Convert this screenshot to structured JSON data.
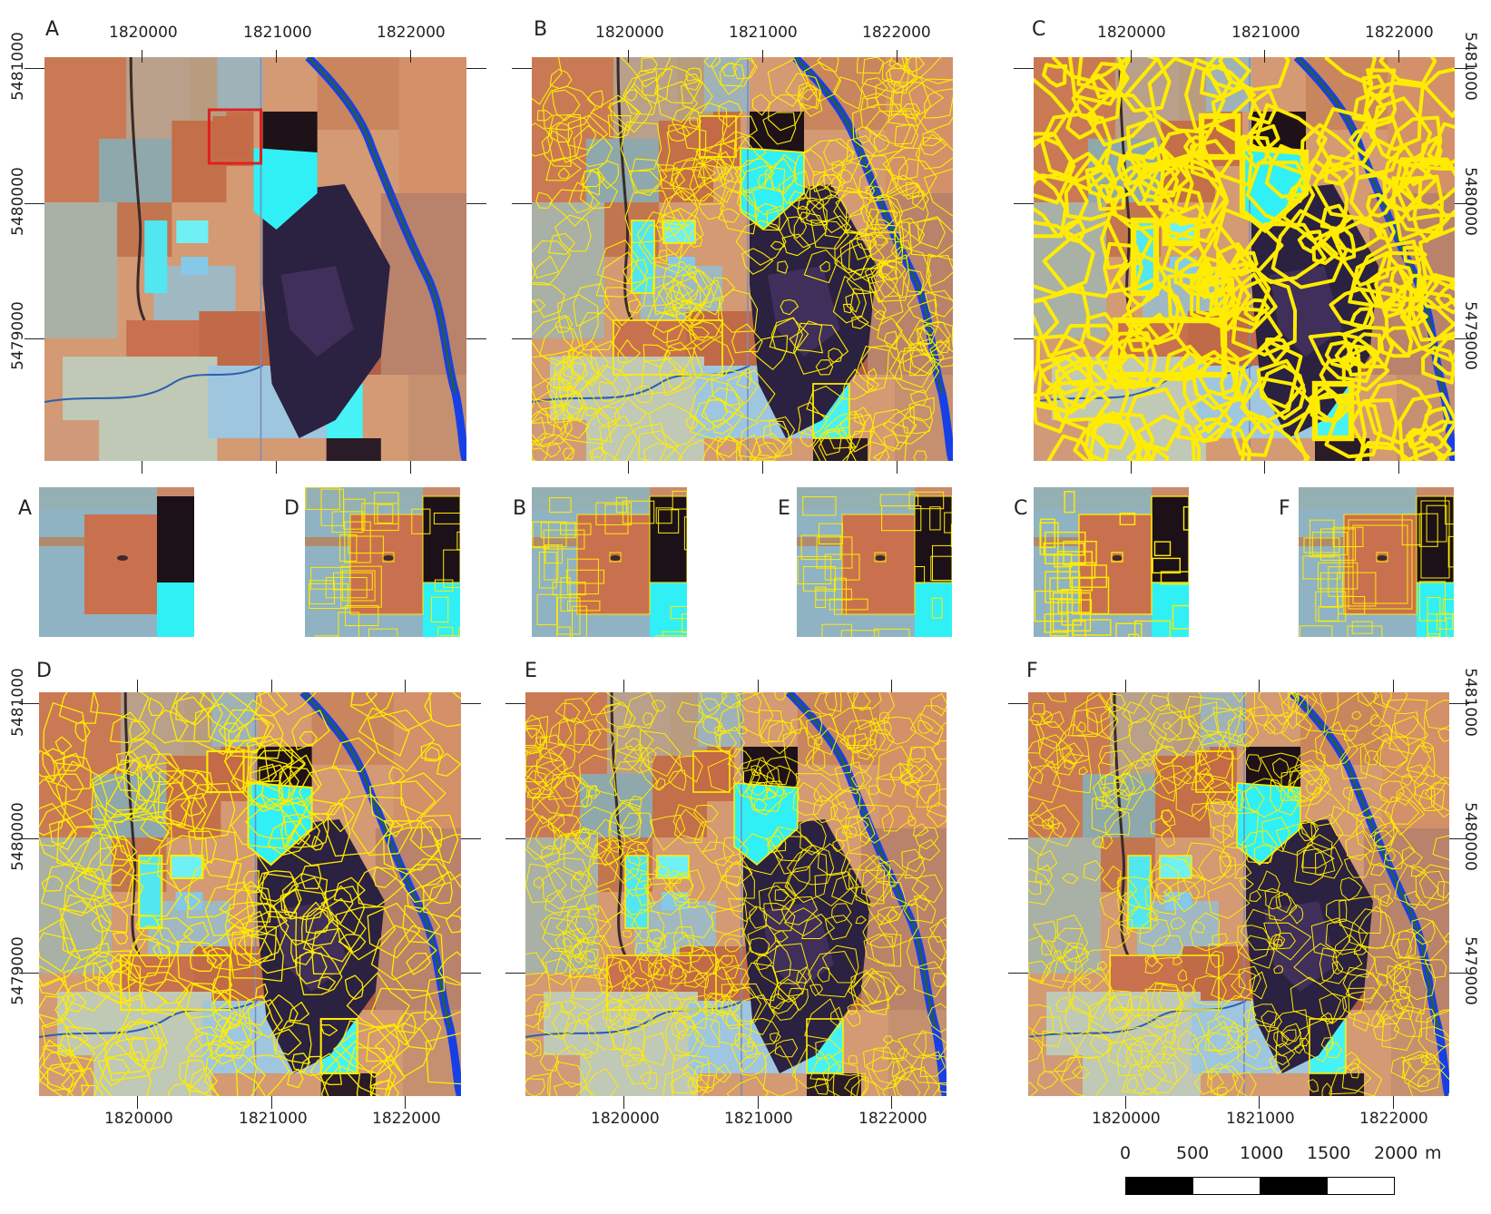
{
  "panels": {
    "A": "A",
    "B": "B",
    "C": "C",
    "D": "D",
    "E": "E",
    "F": "F"
  },
  "x_ticks": [
    "1820000",
    "1821000",
    "1822000"
  ],
  "y_ticks": [
    "5481000",
    "5480000",
    "5479000"
  ],
  "scale_bar": {
    "labels": [
      "0",
      "500",
      "1000",
      "1500",
      "2000"
    ],
    "unit": "m"
  },
  "colors": {
    "segment_outline": "#ffec00",
    "zoom_box": "#e0201c",
    "field_orange": "#c9714e",
    "pasture_blue": "#8fb3c2",
    "water_cyan": "#30f0f5",
    "dark_forest": "#2b2140",
    "river_blue": "#1640e6"
  }
}
